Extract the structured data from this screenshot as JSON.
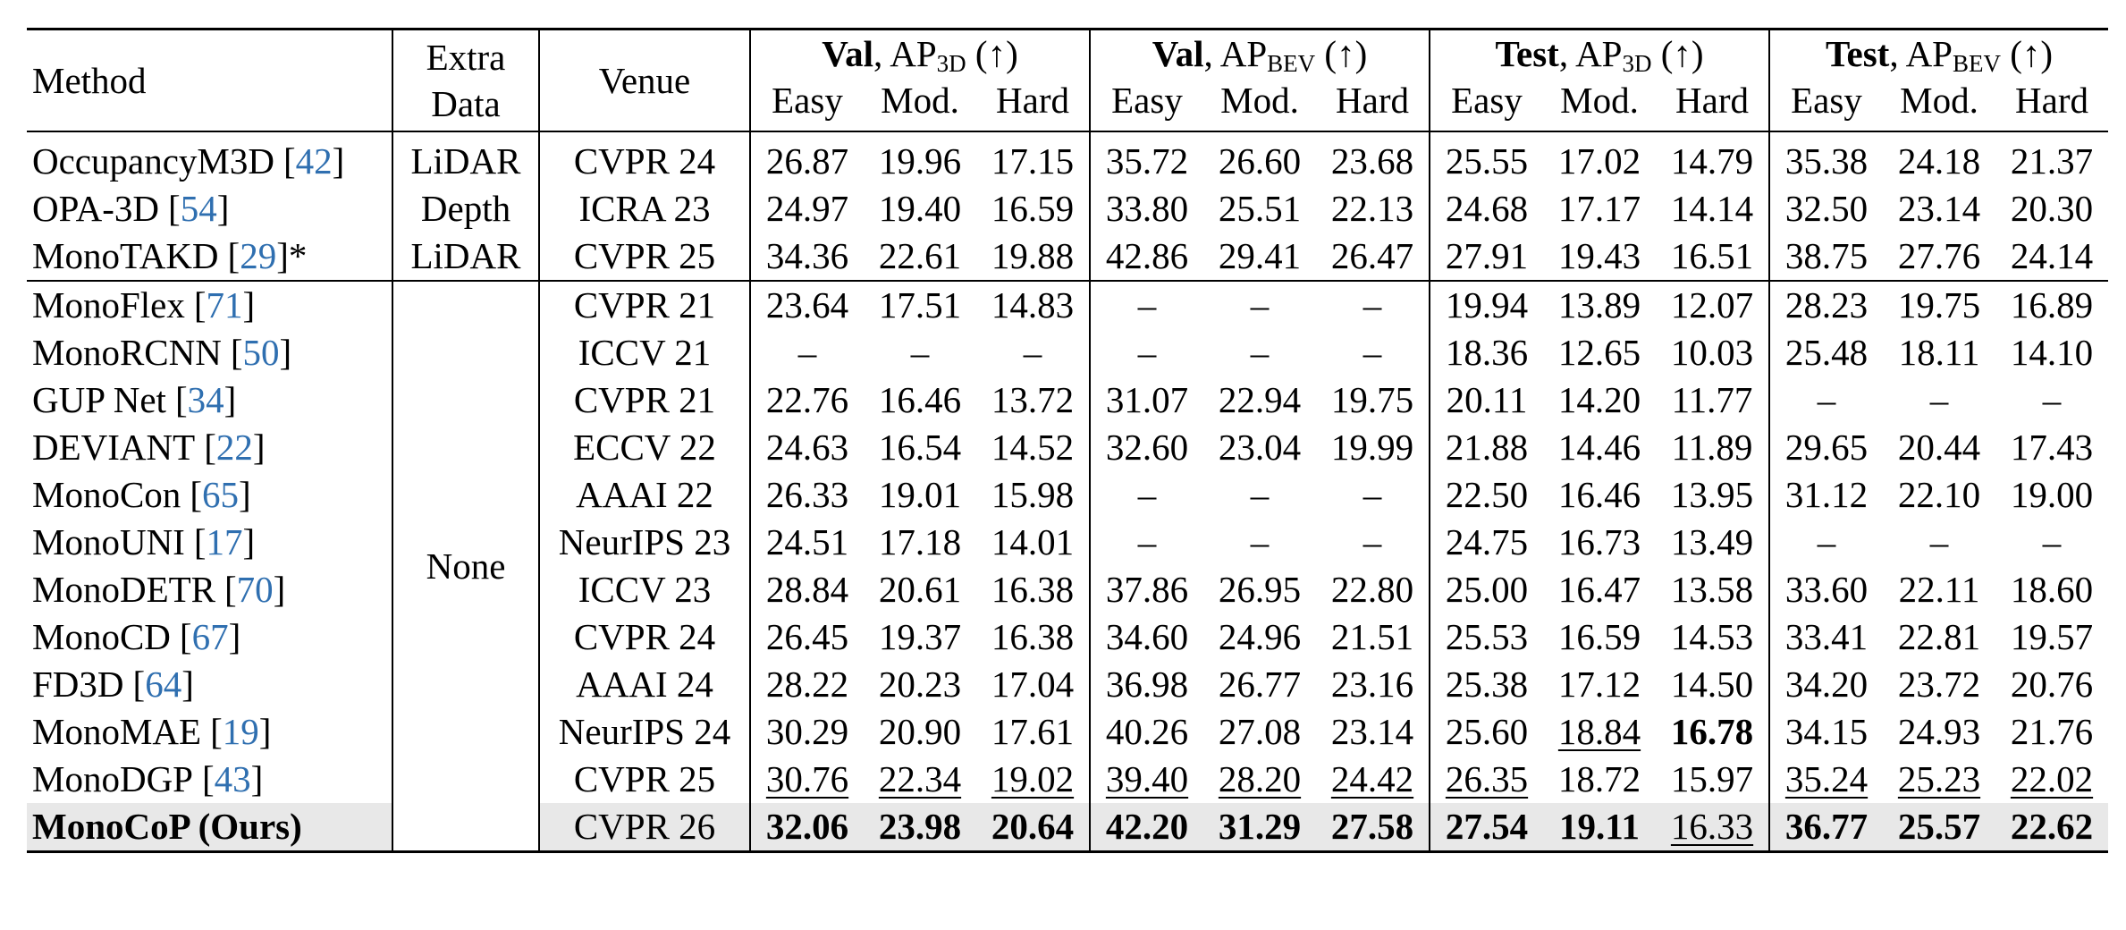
{
  "table": {
    "columns": {
      "method": "Method",
      "extra": [
        "Extra",
        "Data"
      ],
      "venue": "Venue"
    },
    "groups": [
      {
        "name": "Val",
        "metric": ", AP",
        "subscript": "3D",
        "direction": " (↑)",
        "columns": [
          "Easy",
          "Mod.",
          "Hard"
        ]
      },
      {
        "name": "Val",
        "metric": ", AP",
        "subscript": "BEV",
        "direction": " (↑)",
        "columns": [
          "Easy",
          "Mod.",
          "Hard"
        ]
      },
      {
        "name": "Test",
        "metric": ", AP",
        "subscript": "3D",
        "direction": " (↑)",
        "columns": [
          "Easy",
          "Mod.",
          "Hard"
        ]
      },
      {
        "name": "Test",
        "metric": ", AP",
        "subscript": "BEV",
        "direction": " (↑)",
        "columns": [
          "Easy",
          "Mod.",
          "Hard"
        ]
      }
    ],
    "brackets": [
      "[",
      "]"
    ],
    "sections": [
      {
        "rows": [
          {
            "method": "OccupancyM3D",
            "cite": "42",
            "extra": "LiDAR",
            "venue": "CVPR 24",
            "values": [
              "26.87",
              "19.96",
              "17.15",
              "35.72",
              "26.60",
              "23.68",
              "25.55",
              "17.02",
              "14.79",
              "35.38",
              "24.18",
              "21.37"
            ]
          },
          {
            "method": "OPA-3D",
            "cite": "54",
            "extra": "Depth",
            "venue": "ICRA 23",
            "values": [
              "24.97",
              "19.40",
              "16.59",
              "33.80",
              "25.51",
              "22.13",
              "24.68",
              "17.17",
              "14.14",
              "32.50",
              "23.14",
              "20.30"
            ]
          },
          {
            "method": "MonoTAKD",
            "cite": "29",
            "note": "*",
            "extra": "LiDAR",
            "venue": "CVPR 25",
            "values": [
              "34.36",
              "22.61",
              "19.88",
              "42.86",
              "29.41",
              "26.47",
              "27.91",
              "19.43",
              "16.51",
              "38.75",
              "27.76",
              "24.14"
            ]
          }
        ]
      },
      {
        "extra": "None",
        "rows": [
          {
            "method": "MonoFlex",
            "cite": "71",
            "venue": "CVPR 21",
            "values": [
              "23.64",
              "17.51",
              "14.83",
              "–",
              "–",
              "–",
              "19.94",
              "13.89",
              "12.07",
              "28.23",
              "19.75",
              "16.89"
            ]
          },
          {
            "method": "MonoRCNN",
            "cite": "50",
            "venue": "ICCV 21",
            "values": [
              "–",
              "–",
              "–",
              "–",
              "–",
              "–",
              "18.36",
              "12.65",
              "10.03",
              "25.48",
              "18.11",
              "14.10"
            ]
          },
          {
            "method": "GUP Net",
            "cite": "34",
            "venue": "CVPR 21",
            "values": [
              "22.76",
              "16.46",
              "13.72",
              "31.07",
              "22.94",
              "19.75",
              "20.11",
              "14.20",
              "11.77",
              "–",
              "–",
              "–"
            ]
          },
          {
            "method": "DEVIANT",
            "cite": "22",
            "venue": "ECCV 22",
            "values": [
              "24.63",
              "16.54",
              "14.52",
              "32.60",
              "23.04",
              "19.99",
              "21.88",
              "14.46",
              "11.89",
              "29.65",
              "20.44",
              "17.43"
            ]
          },
          {
            "method": "MonoCon",
            "cite": "65",
            "venue": "AAAI 22",
            "values": [
              "26.33",
              "19.01",
              "15.98",
              "–",
              "–",
              "–",
              "22.50",
              "16.46",
              "13.95",
              "31.12",
              "22.10",
              "19.00"
            ]
          },
          {
            "method": "MonoUNI",
            "cite": "17",
            "venue": "NeurIPS 23",
            "values": [
              "24.51",
              "17.18",
              "14.01",
              "–",
              "–",
              "–",
              "24.75",
              "16.73",
              "13.49",
              "–",
              "–",
              "–"
            ]
          },
          {
            "method": "MonoDETR",
            "cite": "70",
            "venue": "ICCV 23",
            "values": [
              "28.84",
              "20.61",
              "16.38",
              "37.86",
              "26.95",
              "22.80",
              "25.00",
              "16.47",
              "13.58",
              "33.60",
              "22.11",
              "18.60"
            ]
          },
          {
            "method": "MonoCD",
            "cite": "67",
            "venue": "CVPR 24",
            "values": [
              "26.45",
              "19.37",
              "16.38",
              "34.60",
              "24.96",
              "21.51",
              "25.53",
              "16.59",
              "14.53",
              "33.41",
              "22.81",
              "19.57"
            ]
          },
          {
            "method": "FD3D",
            "cite": "64",
            "venue": "AAAI 24",
            "values": [
              "28.22",
              "20.23",
              "17.04",
              "36.98",
              "26.77",
              "23.16",
              "25.38",
              "17.12",
              "14.50",
              "34.20",
              "23.72",
              "20.76"
            ]
          },
          {
            "method": "MonoMAE",
            "cite": "19",
            "venue": "NeurIPS 24",
            "values": [
              "30.29",
              "20.90",
              "17.61",
              "40.26",
              "27.08",
              "23.14",
              "25.60",
              "18.84",
              "16.78",
              "34.15",
              "24.93",
              "21.76"
            ],
            "bold": [
              8
            ],
            "underline": [
              7
            ]
          },
          {
            "method": "MonoDGP",
            "cite": "43",
            "venue": "CVPR 25",
            "values": [
              "30.76",
              "22.34",
              "19.02",
              "39.40",
              "28.20",
              "24.42",
              "26.35",
              "18.72",
              "15.97",
              "35.24",
              "25.23",
              "22.02"
            ],
            "underline": [
              0,
              1,
              2,
              3,
              4,
              5,
              6,
              9,
              10,
              11
            ]
          },
          {
            "method": "MonoCoP (Ours)",
            "venue": "CVPR 26",
            "values": [
              "32.06",
              "23.98",
              "20.64",
              "42.20",
              "31.29",
              "27.58",
              "27.54",
              "19.11",
              "16.33",
              "36.77",
              "25.57",
              "22.62"
            ],
            "bold": [
              0,
              1,
              2,
              3,
              4,
              5,
              6,
              7,
              9,
              10,
              11
            ],
            "underline": [
              8
            ],
            "highlight": true
          }
        ]
      }
    ]
  }
}
